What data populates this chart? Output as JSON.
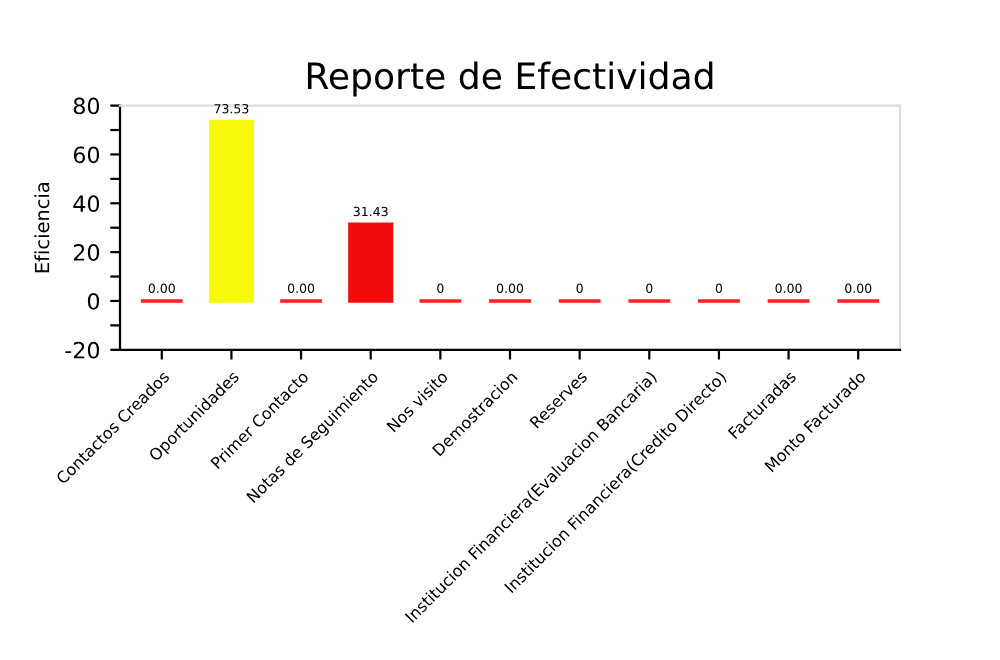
{
  "chart_data": {
    "type": "bar",
    "title": "Reporte de Efectividad",
    "ylabel": "Eficiencia",
    "categories": [
      "Contactos Creados",
      "Oportunidades",
      "Primer Contacto",
      "Notas de Seguimiento",
      "Nos visito",
      "Demostracion",
      "Reserves",
      "Institucion Financiera(Evaluacion Bancaria)",
      "Institucion Financiera(Credito Directo)",
      "Facturadas",
      "Monto Facturado"
    ],
    "values": [
      0,
      73.53,
      0,
      31.43,
      0,
      0,
      0,
      0,
      0,
      0,
      0
    ],
    "colors": [
      "#ff2020",
      "#f8f80a",
      "#ff2020",
      "#f20c0c",
      "#ff2020",
      "#ff2020",
      "#ff2020",
      "#ff2020",
      "#ff2020",
      "#ff2020",
      "#ff2020"
    ],
    "value_labels": [
      "0.00",
      "73.53",
      "0.00",
      "31.43",
      "0",
      "0.00",
      "0",
      "0",
      "0",
      "0.00",
      "0.00"
    ],
    "ylim": [
      -20,
      80
    ],
    "yticks": [
      -20,
      {
        "value": -10,
        "label": null
      },
      0,
      {
        "value": 10,
        "label": null
      },
      20,
      {
        "value": 30,
        "label": null
      },
      40,
      {
        "value": 50,
        "label": null
      },
      60,
      {
        "value": 70,
        "label": null
      },
      80
    ],
    "grid": false,
    "legend": false
  }
}
